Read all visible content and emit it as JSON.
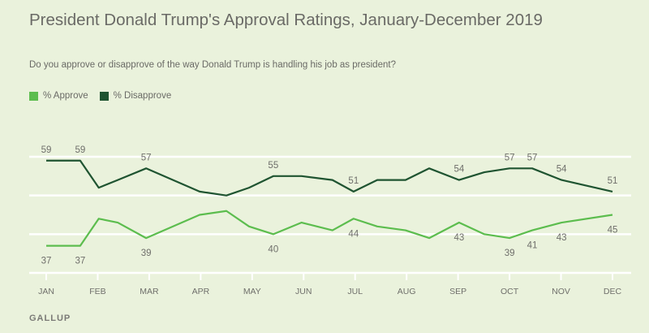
{
  "header": {
    "title": "President Donald Trump's Approval Ratings, January-December 2019",
    "subtitle": "Do you approve or disapprove of the way Donald Trump is handling his job as president?"
  },
  "legend": [
    {
      "label": "% Approve",
      "color": "#5cbd4e"
    },
    {
      "label": "% Disapprove",
      "color": "#1f5431"
    }
  ],
  "footer": {
    "source": "GALLUP"
  },
  "chart_data": {
    "type": "line",
    "title": "President Donald Trump's Approval Ratings, January-December 2019",
    "subtitle": "Do you approve or disapprove of the way Donald Trump is handling his job as president?",
    "xlabel": "",
    "ylabel": "",
    "x_ticks": [
      "JAN",
      "FEB",
      "MAR",
      "APR",
      "MAY",
      "JUN",
      "JUL",
      "AUG",
      "SEP",
      "OCT",
      "NOV",
      "DEC"
    ],
    "x_units": "month index (0 = JAN, 11 = DEC)",
    "x": [
      0.0,
      0.66,
      1.02,
      1.39,
      1.94,
      2.98,
      3.5,
      3.94,
      4.41,
      4.96,
      5.56,
      5.97,
      6.43,
      6.98,
      7.44,
      8.02,
      8.51,
      9.0,
      9.44,
      10.01,
      11.0
    ],
    "ylim": [
      30,
      60
    ],
    "y_gridlines": [
      30,
      40,
      50,
      60
    ],
    "grid": true,
    "legend_position": "top-left",
    "series": [
      {
        "name": "% Approve",
        "color": "#5cbd4e",
        "values": [
          37,
          37,
          44,
          43,
          39,
          45,
          46,
          42,
          40,
          43,
          41,
          44,
          42,
          41,
          39,
          43,
          40,
          39,
          41,
          43,
          45
        ],
        "labels": [
          {
            "index": 0,
            "text": "37",
            "pos": "below"
          },
          {
            "index": 1,
            "text": "37",
            "pos": "below"
          },
          {
            "index": 4,
            "text": "39",
            "pos": "below"
          },
          {
            "index": 8,
            "text": "40",
            "pos": "below"
          },
          {
            "index": 11,
            "text": "44",
            "pos": "below"
          },
          {
            "index": 15,
            "text": "43",
            "pos": "below"
          },
          {
            "index": 17,
            "text": "39",
            "pos": "below"
          },
          {
            "index": 18,
            "text": "41",
            "pos": "below"
          },
          {
            "index": 19,
            "text": "43",
            "pos": "below"
          },
          {
            "index": 20,
            "text": "45",
            "pos": "below"
          }
        ]
      },
      {
        "name": "% Disapprove",
        "color": "#1f5431",
        "values": [
          59,
          59,
          52,
          54,
          57,
          51,
          50,
          52,
          55,
          55,
          54,
          51,
          54,
          54,
          57,
          54,
          56,
          57,
          57,
          54,
          51
        ],
        "labels": [
          {
            "index": 0,
            "text": "59",
            "pos": "above"
          },
          {
            "index": 1,
            "text": "59",
            "pos": "above"
          },
          {
            "index": 4,
            "text": "57",
            "pos": "above"
          },
          {
            "index": 8,
            "text": "55",
            "pos": "above"
          },
          {
            "index": 11,
            "text": "51",
            "pos": "above"
          },
          {
            "index": 15,
            "text": "54",
            "pos": "above"
          },
          {
            "index": 17,
            "text": "57",
            "pos": "above"
          },
          {
            "index": 18,
            "text": "57",
            "pos": "above"
          },
          {
            "index": 19,
            "text": "54",
            "pos": "above"
          },
          {
            "index": 20,
            "text": "51",
            "pos": "above"
          }
        ]
      }
    ]
  }
}
